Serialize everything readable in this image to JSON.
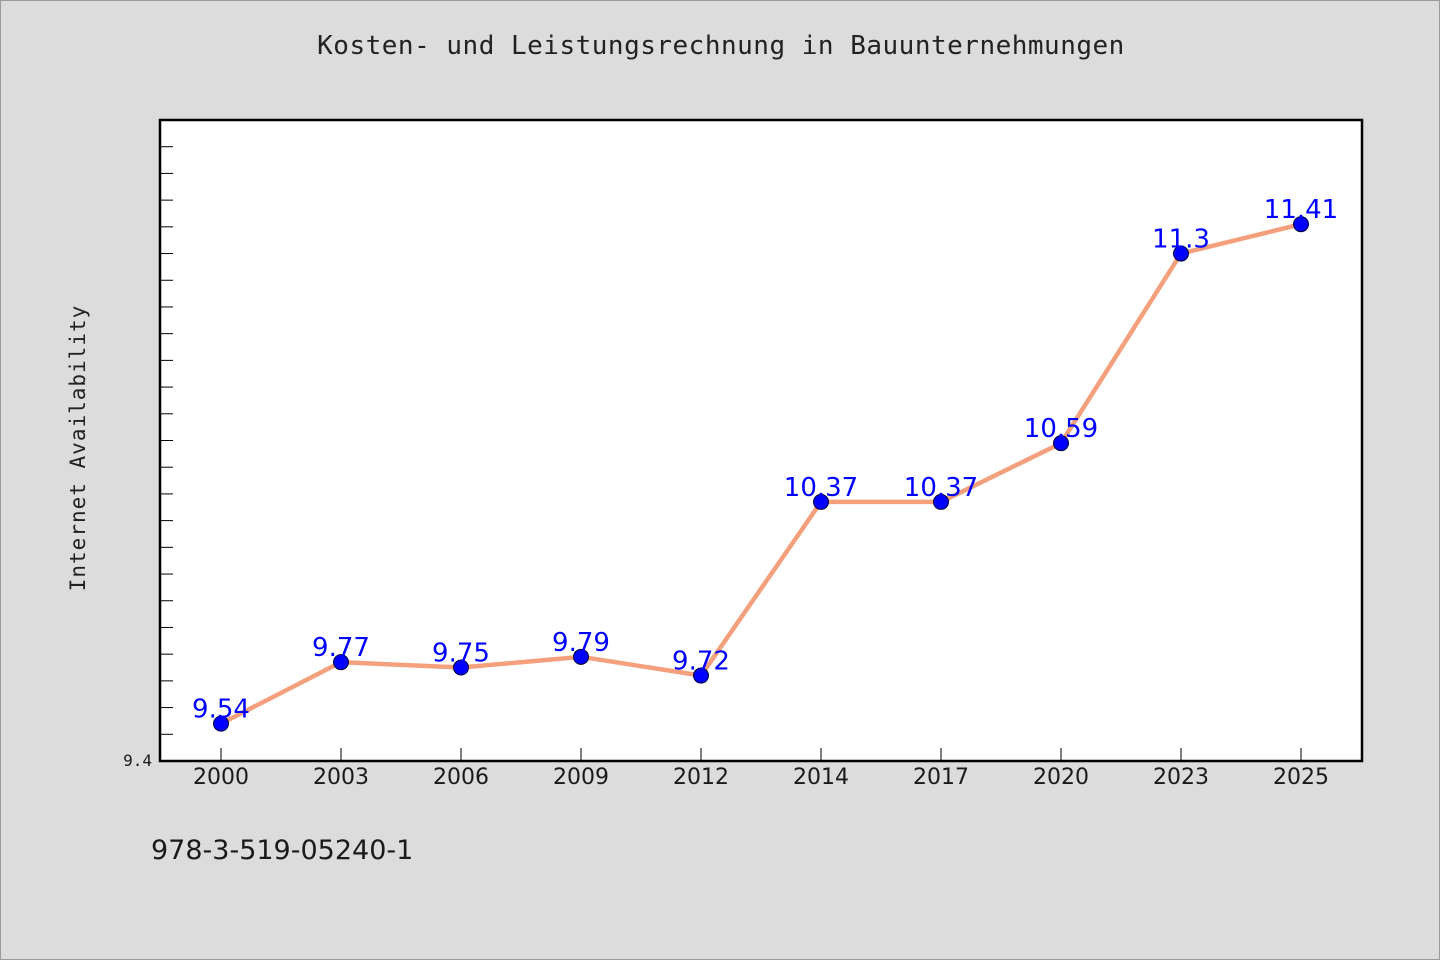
{
  "chart_data": {
    "type": "line",
    "title": "Kosten- und Leistungsrechnung in Bauunternehmungen",
    "xlabel": "",
    "ylabel": "Internet Availability",
    "categories": [
      "2000",
      "2003",
      "2006",
      "2009",
      "2012",
      "2014",
      "2017",
      "2020",
      "2023",
      "2025"
    ],
    "series": [
      {
        "values": [
          9.54,
          9.77,
          9.75,
          9.79,
          9.72,
          10.37,
          10.37,
          10.59,
          11.3,
          11.41
        ]
      }
    ],
    "data_labels": [
      "9.54",
      "9.77",
      "9.75",
      "9.79",
      "9.72",
      "10.37",
      "10.37",
      "10.59",
      "11.3",
      "11.41"
    ],
    "ylim": [
      9.4,
      11.8
    ],
    "ytick_labels": [
      {
        "value": 9.4,
        "label": "9.4"
      }
    ],
    "grid": false,
    "legend": "none",
    "colors": {
      "line": "#f4a07c",
      "marker": "#0000ff",
      "data_label": "#0000ff",
      "plot_background": "#ffffff",
      "page_background": "#dcdcdc"
    }
  },
  "footer": {
    "text": "978-3-519-05240-1"
  }
}
